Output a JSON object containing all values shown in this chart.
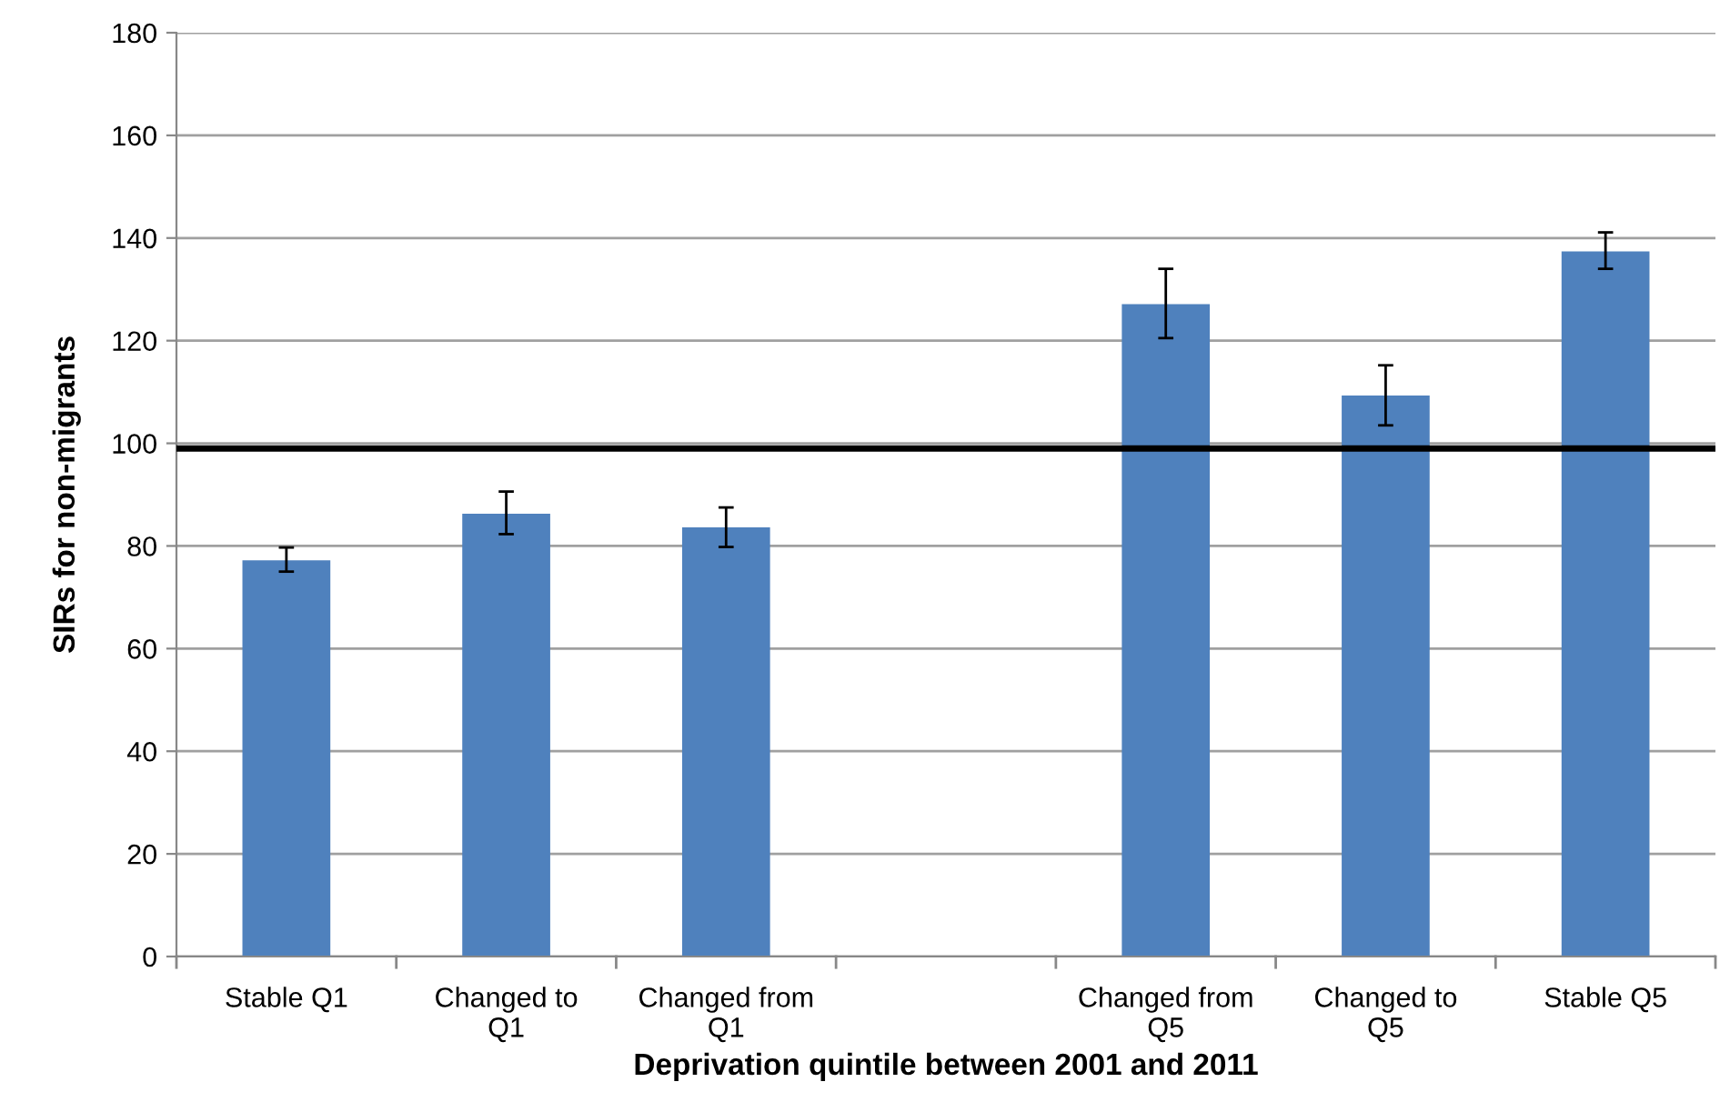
{
  "chart_data": {
    "type": "bar",
    "xlabel": "Deprivation quintile between 2001 and 2011",
    "ylabel": "SIRs for non-migrants",
    "categories": [
      "Stable Q1",
      "Changed to\nQ1",
      "Changed from\nQ1",
      null,
      "Changed from\nQ5",
      "Changed to\nQ5",
      "Stable Q5"
    ],
    "values": [
      77.2,
      86.3,
      83.6,
      null,
      127.1,
      109.3,
      137.4
    ],
    "errors": [
      [
        75.0,
        79.7
      ],
      [
        82.3,
        90.6
      ],
      [
        79.8,
        87.5
      ],
      null,
      [
        120.5,
        134.0
      ],
      [
        103.5,
        115.2
      ],
      [
        134.0,
        141.1
      ]
    ],
    "color": "#4f81bd",
    "ylim": [
      0,
      180
    ],
    "yticks": [
      0,
      20,
      40,
      60,
      80,
      100,
      120,
      140,
      160,
      180
    ],
    "grid": "y",
    "legend": false,
    "ref_lines": [
      {
        "axis": "y",
        "value": 99,
        "color": "#000000",
        "line_style": "solid"
      }
    ]
  }
}
